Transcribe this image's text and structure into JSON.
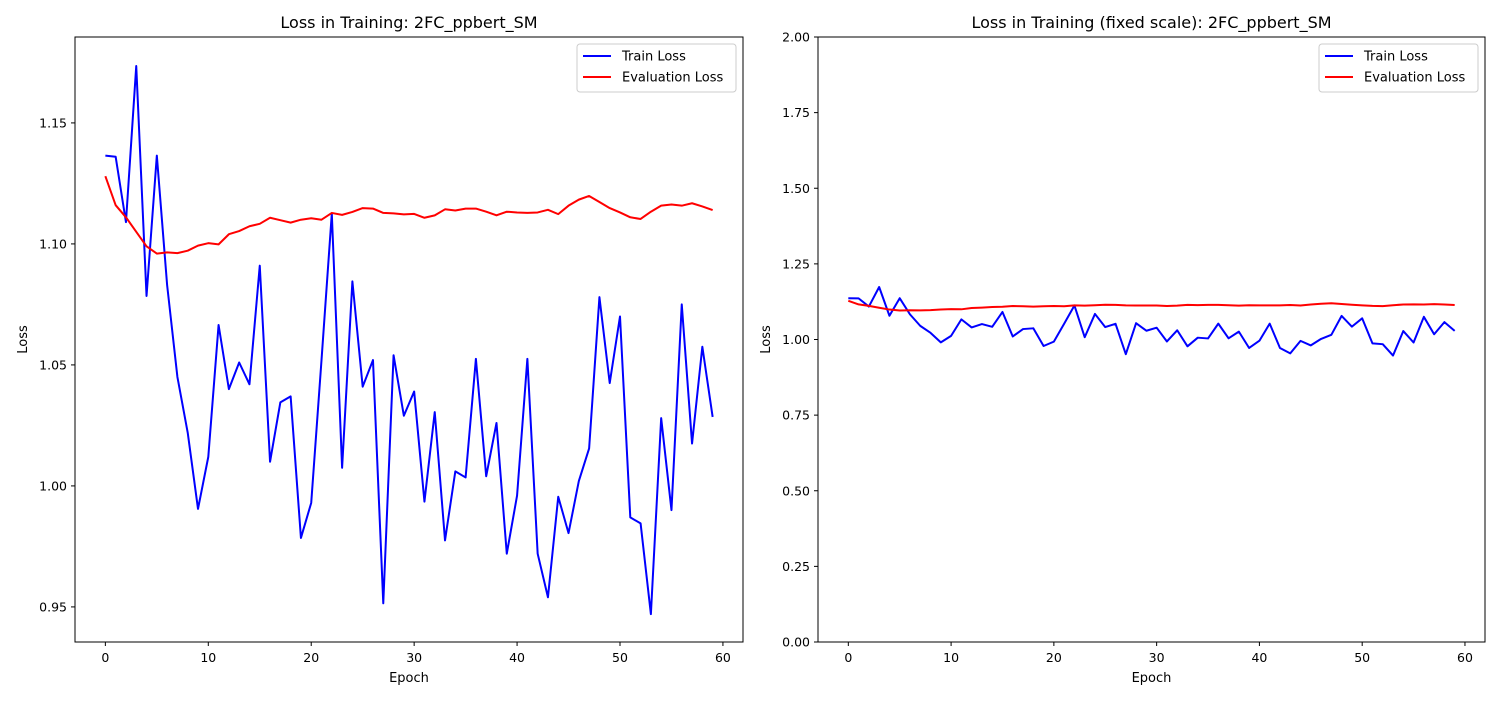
{
  "chart_data": [
    {
      "type": "line",
      "title": "Loss in Training: 2FC_ppbert_SM",
      "xlabel": "Epoch",
      "ylabel": "Loss",
      "xlim": [
        -2.95,
        61.95
      ],
      "ylim": [
        0.9355,
        1.1855
      ],
      "xticks": [
        0,
        10,
        20,
        30,
        40,
        50,
        60
      ],
      "xtick_labels": [
        "0",
        "10",
        "20",
        "30",
        "40",
        "50",
        "60"
      ],
      "yticks": [
        0.95,
        1.0,
        1.05,
        1.1,
        1.15
      ],
      "ytick_labels": [
        "0.95",
        "1.00",
        "1.05",
        "1.10",
        "1.15"
      ],
      "grid": false,
      "legend": "top-right",
      "series": [
        {
          "name": "Train Loss",
          "color": "#0000ff",
          "values": [
            1.1365,
            1.136,
            1.109,
            1.1735,
            1.0785,
            1.1365,
            1.083,
            1.045,
            1.022,
            0.9905,
            1.012,
            1.0665,
            1.04,
            1.051,
            1.042,
            1.091,
            1.01,
            1.0345,
            1.037,
            0.9785,
            0.993,
            1.052,
            1.1125,
            1.0075,
            1.0845,
            1.041,
            1.052,
            0.9515,
            1.054,
            1.029,
            1.039,
            0.9935,
            1.0305,
            0.9775,
            1.006,
            1.0035,
            1.0525,
            1.004,
            1.026,
            0.972,
            0.996,
            1.0525,
            0.972,
            0.954,
            0.9955,
            0.9805,
            1.002,
            1.0155,
            1.078,
            1.0425,
            1.07,
            0.987,
            0.9845,
            0.947,
            1.028,
            0.99,
            1.075,
            1.0175,
            1.0575,
            1.0285
          ]
        },
        {
          "name": "Evaluation Loss",
          "color": "#ff0000",
          "values": [
            1.128,
            1.116,
            1.111,
            1.105,
            1.099,
            1.096,
            1.0965,
            1.0962,
            1.0972,
            1.0993,
            1.1003,
            1.0998,
            1.104,
            1.1053,
            1.1073,
            1.1083,
            1.1108,
            1.1098,
            1.1088,
            1.11,
            1.1106,
            1.11,
            1.1128,
            1.112,
            1.1132,
            1.1148,
            1.1146,
            1.1128,
            1.1126,
            1.1122,
            1.1124,
            1.1108,
            1.1118,
            1.1143,
            1.1138,
            1.1146,
            1.1146,
            1.1133,
            1.1118,
            1.1133,
            1.113,
            1.1128,
            1.113,
            1.1141,
            1.1123,
            1.1158,
            1.1183,
            1.1198,
            1.1173,
            1.1148,
            1.113,
            1.111,
            1.1103,
            1.1133,
            1.1158,
            1.1163,
            1.1158,
            1.1168,
            1.1155,
            1.114
          ]
        }
      ]
    },
    {
      "type": "line",
      "title": "Loss in Training (fixed scale): 2FC_ppbert_SM",
      "xlabel": "Epoch",
      "ylabel": "Loss",
      "xlim": [
        -2.95,
        61.95
      ],
      "ylim": [
        0,
        2
      ],
      "xticks": [
        0,
        10,
        20,
        30,
        40,
        50,
        60
      ],
      "xtick_labels": [
        "0",
        "10",
        "20",
        "30",
        "40",
        "50",
        "60"
      ],
      "yticks": [
        0.0,
        0.25,
        0.5,
        0.75,
        1.0,
        1.25,
        1.5,
        1.75,
        2.0
      ],
      "ytick_labels": [
        "0.00",
        "0.25",
        "0.50",
        "0.75",
        "1.00",
        "1.25",
        "1.50",
        "1.75",
        "2.00"
      ],
      "grid": false,
      "legend": "top-right",
      "series": [
        {
          "name": "Train Loss",
          "color": "#0000ff",
          "values": [
            1.1365,
            1.136,
            1.109,
            1.1735,
            1.0785,
            1.1365,
            1.083,
            1.045,
            1.022,
            0.9905,
            1.012,
            1.0665,
            1.04,
            1.051,
            1.042,
            1.091,
            1.01,
            1.0345,
            1.037,
            0.9785,
            0.993,
            1.052,
            1.1125,
            1.0075,
            1.0845,
            1.041,
            1.052,
            0.9515,
            1.054,
            1.029,
            1.039,
            0.9935,
            1.0305,
            0.9775,
            1.006,
            1.0035,
            1.0525,
            1.004,
            1.026,
            0.972,
            0.996,
            1.0525,
            0.972,
            0.954,
            0.9955,
            0.9805,
            1.002,
            1.0155,
            1.078,
            1.0425,
            1.07,
            0.987,
            0.9845,
            0.947,
            1.028,
            0.99,
            1.075,
            1.0175,
            1.0575,
            1.0285
          ]
        },
        {
          "name": "Evaluation Loss",
          "color": "#ff0000",
          "values": [
            1.128,
            1.116,
            1.111,
            1.105,
            1.099,
            1.096,
            1.0965,
            1.0962,
            1.0972,
            1.0993,
            1.1003,
            1.0998,
            1.104,
            1.1053,
            1.1073,
            1.1083,
            1.1108,
            1.1098,
            1.1088,
            1.11,
            1.1106,
            1.11,
            1.1128,
            1.112,
            1.1132,
            1.1148,
            1.1146,
            1.1128,
            1.1126,
            1.1122,
            1.1124,
            1.1108,
            1.1118,
            1.1143,
            1.1138,
            1.1146,
            1.1146,
            1.1133,
            1.1118,
            1.1133,
            1.113,
            1.1128,
            1.113,
            1.1141,
            1.1123,
            1.1158,
            1.1183,
            1.1198,
            1.1173,
            1.1148,
            1.113,
            1.111,
            1.1103,
            1.1133,
            1.1158,
            1.1163,
            1.1158,
            1.1168,
            1.1155,
            1.114
          ]
        }
      ]
    }
  ]
}
